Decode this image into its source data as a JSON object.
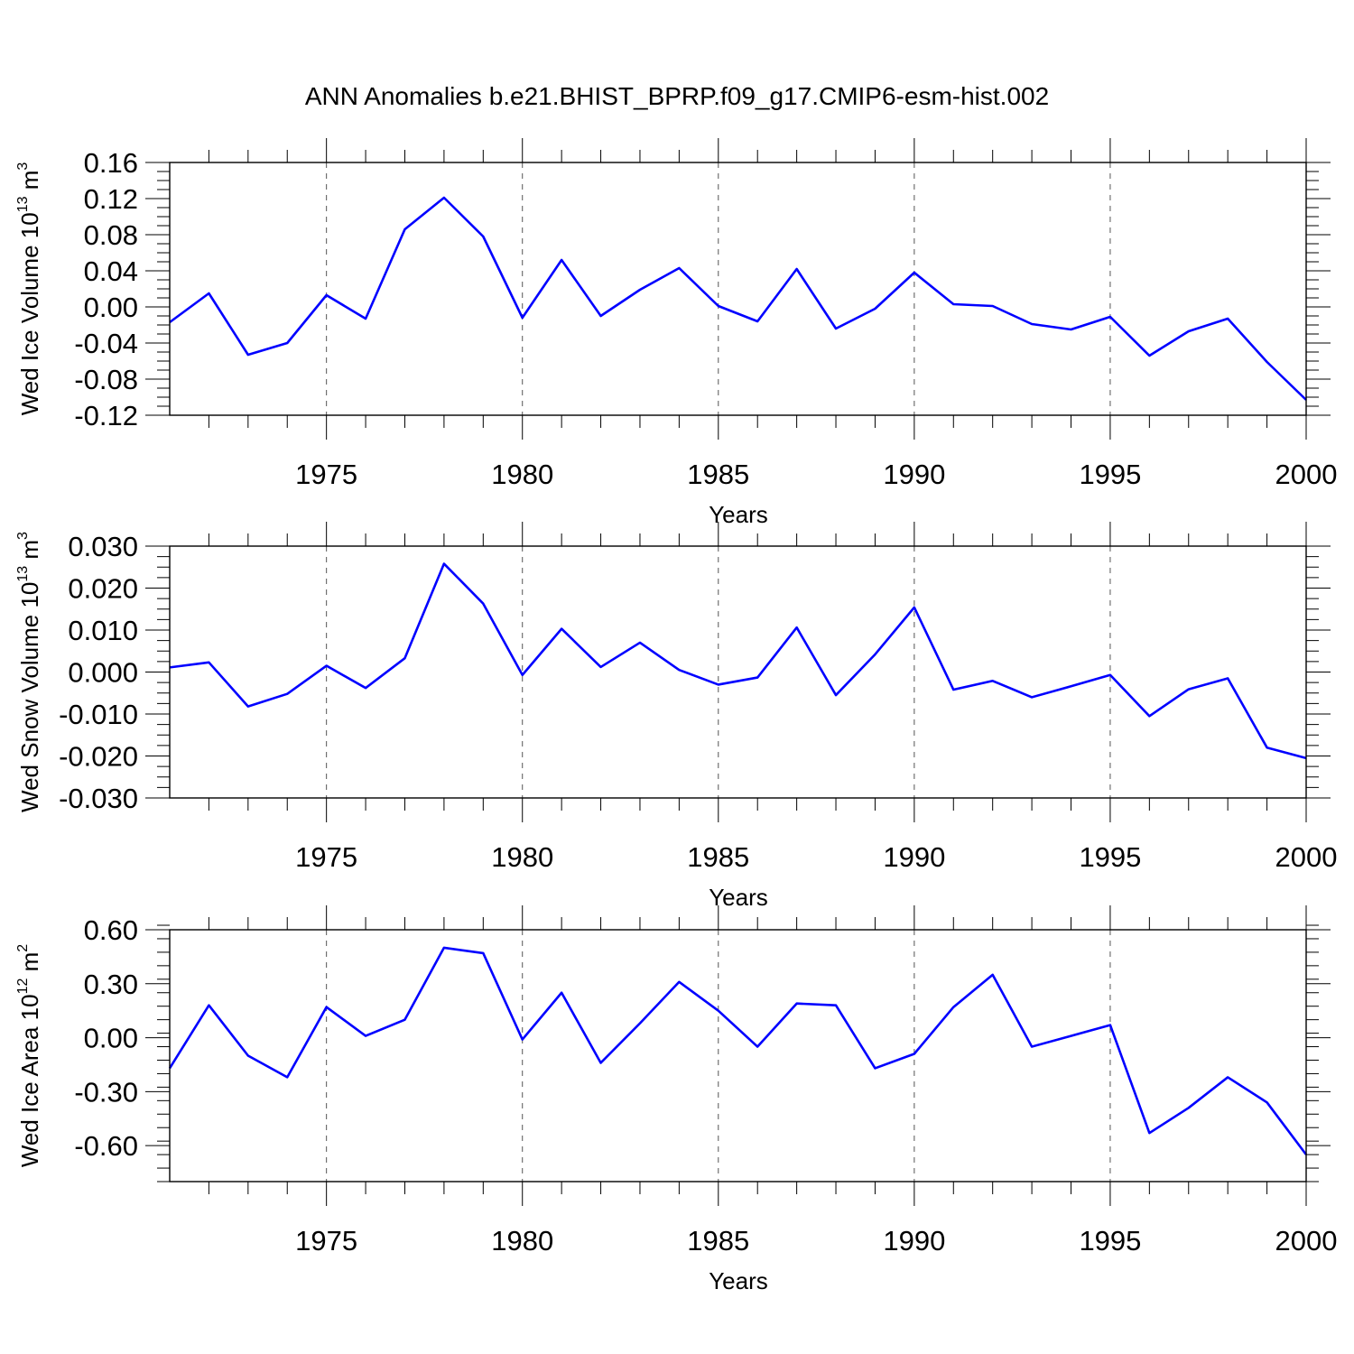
{
  "title": "ANN Anomalies b.e21.BHIST_BPRP.f09_g17.CMIP6-esm-hist.002",
  "line_color": "#0000ff",
  "axis_color": "#000000",
  "grid": "vertical dashed lines at 5-year ticks",
  "chart_data": [
    {
      "type": "line",
      "ylabel": "Wed Ice Volume 10",
      "ylabel_exp": "13",
      "ylabel_unit": " m",
      "ylabel_unit_exp": "3",
      "xlabel": "Years",
      "xlim": [
        1971,
        2000
      ],
      "ylim": [
        -0.12,
        0.16
      ],
      "xticks": [
        1975,
        1980,
        1985,
        1990,
        1995,
        2000
      ],
      "xtick_labels": [
        "1975",
        "1980",
        "1985",
        "1990",
        "1995",
        "2000"
      ],
      "yticks": [
        0.16,
        0.12,
        0.08,
        0.04,
        0.0,
        -0.04,
        -0.08,
        -0.12
      ],
      "ytick_labels": [
        "0.16",
        "0.12",
        "0.08",
        "0.04",
        "0.00",
        "-0.04",
        "-0.08",
        "-0.12"
      ],
      "x": [
        1971,
        1972,
        1973,
        1974,
        1975,
        1976,
        1977,
        1978,
        1979,
        1980,
        1981,
        1982,
        1983,
        1984,
        1985,
        1986,
        1987,
        1988,
        1989,
        1990,
        1991,
        1992,
        1993,
        1994,
        1995,
        1996,
        1997,
        1998,
        1999,
        2000
      ],
      "series": [
        {
          "values": [
            -0.017,
            0.015,
            -0.053,
            -0.04,
            0.013,
            -0.013,
            0.086,
            0.121,
            0.078,
            -0.012,
            0.052,
            -0.01,
            0.019,
            0.043,
            0.001,
            -0.016,
            0.042,
            -0.024,
            -0.002,
            0.038,
            0.003,
            0.001,
            -0.019,
            -0.025,
            -0.011,
            -0.054,
            -0.027,
            -0.013,
            -0.061,
            -0.103
          ]
        }
      ]
    },
    {
      "type": "line",
      "ylabel": "Wed Snow Volume 10",
      "ylabel_exp": "13",
      "ylabel_unit": " m",
      "ylabel_unit_exp": "3",
      "xlabel": "Years",
      "xlim": [
        1971,
        2000
      ],
      "ylim": [
        -0.03,
        0.03
      ],
      "xticks": [
        1975,
        1980,
        1985,
        1990,
        1995,
        2000
      ],
      "xtick_labels": [
        "1975",
        "1980",
        "1985",
        "1990",
        "1995",
        "2000"
      ],
      "yticks": [
        0.03,
        0.02,
        0.01,
        0.0,
        -0.01,
        -0.02,
        -0.03
      ],
      "ytick_labels": [
        "0.030",
        "0.020",
        "0.010",
        "0.000",
        "-0.010",
        "-0.020",
        "-0.030"
      ],
      "x": [
        1971,
        1972,
        1973,
        1974,
        1975,
        1976,
        1977,
        1978,
        1979,
        1980,
        1981,
        1982,
        1983,
        1984,
        1985,
        1986,
        1987,
        1988,
        1989,
        1990,
        1991,
        1992,
        1993,
        1994,
        1995,
        1996,
        1997,
        1998,
        1999,
        2000
      ],
      "series": [
        {
          "values": [
            0.0011,
            0.0023,
            -0.0082,
            -0.0052,
            0.0015,
            -0.0038,
            0.0033,
            0.0258,
            0.0163,
            -0.0007,
            0.0103,
            0.0012,
            0.007,
            0.0005,
            -0.003,
            -0.0013,
            0.0106,
            -0.0055,
            0.0042,
            0.0154,
            -0.0042,
            -0.0021,
            -0.006,
            -0.0034,
            -0.0007,
            -0.0105,
            -0.0041,
            -0.0015,
            -0.018,
            -0.0205
          ]
        }
      ]
    },
    {
      "type": "line",
      "ylabel": "Wed Ice Area 10",
      "ylabel_exp": "12",
      "ylabel_unit": " m",
      "ylabel_unit_exp": "2",
      "xlabel": "Years",
      "xlim": [
        1971,
        2000
      ],
      "ylim": [
        -0.8,
        0.6
      ],
      "xticks": [
        1975,
        1980,
        1985,
        1990,
        1995,
        2000
      ],
      "xtick_labels": [
        "1975",
        "1980",
        "1985",
        "1990",
        "1995",
        "2000"
      ],
      "yticks": [
        0.6,
        0.3,
        0.0,
        -0.3,
        -0.6
      ],
      "ytick_labels": [
        "0.60",
        "0.30",
        "0.00",
        "-0.30",
        "-0.60"
      ],
      "x": [
        1971,
        1972,
        1973,
        1974,
        1975,
        1976,
        1977,
        1978,
        1979,
        1980,
        1981,
        1982,
        1983,
        1984,
        1985,
        1986,
        1987,
        1988,
        1989,
        1990,
        1991,
        1992,
        1993,
        1994,
        1995,
        1996,
        1997,
        1998,
        1999,
        2000
      ],
      "series": [
        {
          "values": [
            -0.17,
            0.18,
            -0.1,
            -0.22,
            0.17,
            0.01,
            0.1,
            0.5,
            0.47,
            -0.01,
            0.25,
            -0.14,
            0.08,
            0.31,
            0.15,
            -0.05,
            0.19,
            0.18,
            -0.17,
            -0.09,
            0.17,
            0.35,
            -0.05,
            0.01,
            0.07,
            -0.53,
            -0.39,
            -0.22,
            -0.36,
            -0.65
          ]
        }
      ]
    }
  ]
}
